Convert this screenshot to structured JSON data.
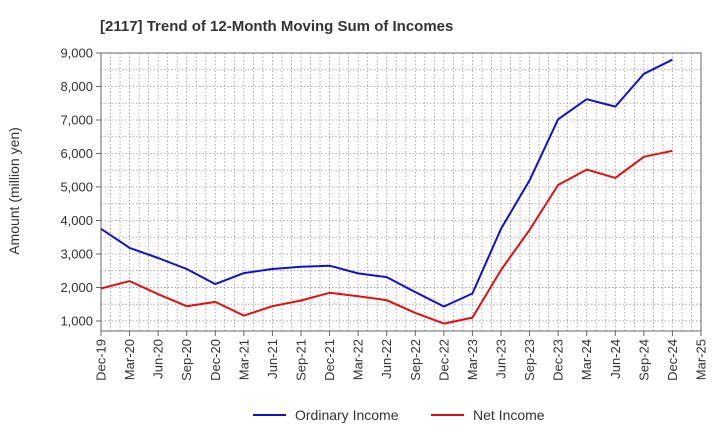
{
  "chart_data": {
    "type": "line",
    "title": "[2117]  Trend of 12-Month Moving Sum of Incomes",
    "xlabel": "",
    "ylabel": "Amount (million yen)",
    "ylim": [
      700,
      9000
    ],
    "yticks": [
      1000,
      2000,
      3000,
      4000,
      5000,
      6000,
      7000,
      8000,
      9000
    ],
    "ytick_labels": [
      "1,000",
      "2,000",
      "3,000",
      "4,000",
      "5,000",
      "6,000",
      "7,000",
      "8,000",
      "9,000"
    ],
    "categories": [
      "Dec-19",
      "Mar-20",
      "Jun-20",
      "Sep-20",
      "Dec-20",
      "Mar-21",
      "Jun-21",
      "Sep-21",
      "Dec-21",
      "Mar-22",
      "Jun-22",
      "Sep-22",
      "Dec-22",
      "Mar-23",
      "Jun-23",
      "Sep-23",
      "Dec-23",
      "Mar-24",
      "Jun-24",
      "Sep-24",
      "Dec-24",
      "Mar-25"
    ],
    "x_tick_labels": [
      "Dec-19",
      "Mar-20",
      "Jun-20",
      "Sep-20",
      "Dec-20",
      "Mar-21",
      "Jun-21",
      "Sep-21",
      "Dec-21",
      "Mar-22",
      "Jun-22",
      "Sep-22",
      "Dec-22",
      "Mar-23",
      "Jun-23",
      "Sep-23",
      "Dec-23",
      "Mar-24",
      "Jun-24",
      "Sep-24",
      "Dec-24",
      "Mar-25"
    ],
    "grid": true,
    "legend_position": "bottom",
    "series": [
      {
        "name": "Ordinary Income",
        "color": "#1010d0",
        "values": [
          3750,
          3180,
          2880,
          2550,
          2100,
          2430,
          2550,
          2620,
          2650,
          2420,
          2310,
          1860,
          1430,
          1820,
          3750,
          5200,
          7020,
          7620,
          7400,
          8380,
          8800,
          null
        ]
      },
      {
        "name": "Net Income",
        "color": "#e01010",
        "values": [
          1970,
          2190,
          1800,
          1440,
          1570,
          1160,
          1440,
          1610,
          1840,
          1740,
          1620,
          1240,
          920,
          1100,
          2520,
          3720,
          5060,
          5520,
          5270,
          5900,
          6080,
          null
        ]
      }
    ]
  }
}
